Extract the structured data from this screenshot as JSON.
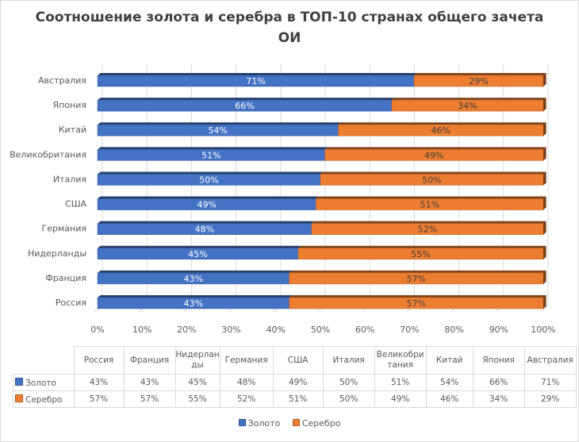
{
  "chart_data": {
    "type": "bar",
    "orientation": "horizontal",
    "stacked": "percent",
    "style": "3d",
    "title": "Соотношение золота и серебра в ТОП-10 странах общего зачета ОИ",
    "title_lines": [
      "Соотношение золота и серебра в ТОП-10 странах общего зачета",
      "ОИ"
    ],
    "xlabel": "",
    "ylabel": "",
    "xlim": [
      0,
      100
    ],
    "x_ticks": [
      "0%",
      "10%",
      "20%",
      "30%",
      "40%",
      "50%",
      "60%",
      "70%",
      "80%",
      "90%",
      "100%"
    ],
    "grid": true,
    "categories": [
      "Россия",
      "Франция",
      "Нидерланды",
      "Германия",
      "США",
      "Италия",
      "Великобритания",
      "Китай",
      "Япония",
      "Австралия"
    ],
    "table_headers": [
      [
        "Россия"
      ],
      [
        "Франция"
      ],
      [
        "Нидерлан",
        "ды"
      ],
      [
        "Германия"
      ],
      [
        "США"
      ],
      [
        "Италия"
      ],
      [
        "Великобри",
        "тания"
      ],
      [
        "Китай"
      ],
      [
        "Япония"
      ],
      [
        "Австралия"
      ]
    ],
    "series": [
      {
        "name": "Золото",
        "color": "#4472c4",
        "values": [
          43,
          43,
          45,
          48,
          49,
          50,
          51,
          54,
          66,
          71
        ]
      },
      {
        "name": "Серебро",
        "color": "#ed7d31",
        "values": [
          57,
          57,
          55,
          52,
          51,
          50,
          49,
          46,
          34,
          29
        ]
      }
    ],
    "legend_position": "bottom",
    "data_table": true,
    "value_suffix": "%"
  }
}
